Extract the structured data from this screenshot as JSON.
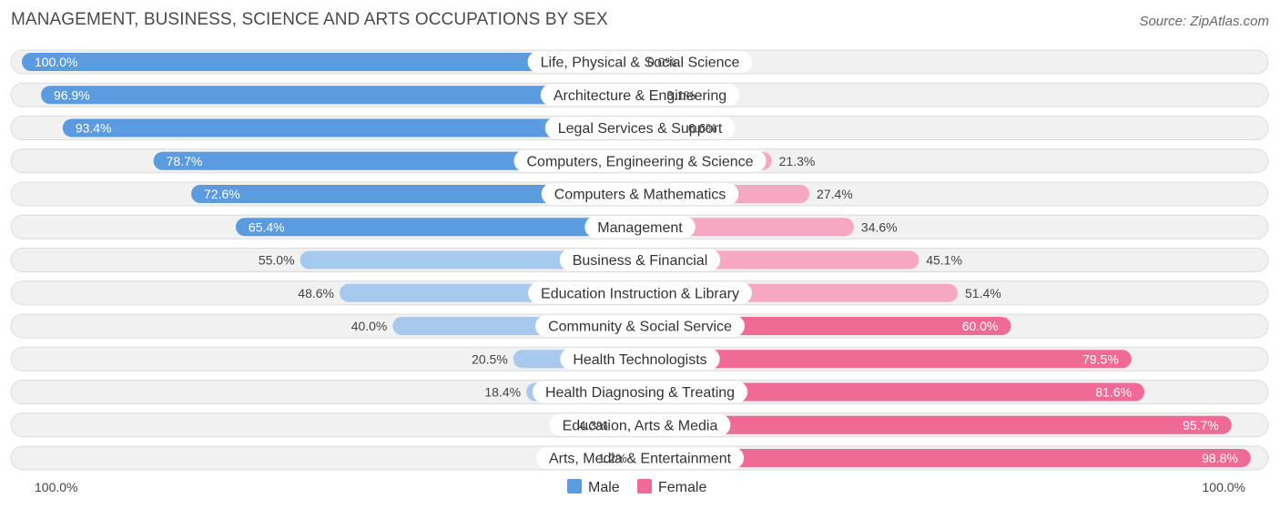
{
  "chart_data": {
    "type": "bar",
    "orientation": "horizontal-diverging",
    "title": "MANAGEMENT, BUSINESS, SCIENCE AND ARTS OCCUPATIONS BY SEX",
    "source": "Source: ZipAtlas.com",
    "categories": [
      "Life, Physical & Social Science",
      "Architecture & Engineering",
      "Legal Services & Support",
      "Computers, Engineering & Science",
      "Computers & Mathematics",
      "Management",
      "Business & Financial",
      "Education Instruction & Library",
      "Community & Social Service",
      "Health Technologists",
      "Health Diagnosing & Treating",
      "Education, Arts & Media",
      "Arts, Media & Entertainment"
    ],
    "series": [
      {
        "name": "Male",
        "values": [
          100.0,
          96.9,
          93.4,
          78.7,
          72.6,
          65.4,
          55.0,
          48.6,
          40.0,
          20.5,
          18.4,
          4.3,
          1.2
        ],
        "labels": [
          "100.0%",
          "96.9%",
          "93.4%",
          "78.7%",
          "72.6%",
          "65.4%",
          "55.0%",
          "48.6%",
          "40.0%",
          "20.5%",
          "18.4%",
          "4.3%",
          "1.2%"
        ]
      },
      {
        "name": "Female",
        "values": [
          0.0,
          3.1,
          6.6,
          21.3,
          27.4,
          34.6,
          45.1,
          51.4,
          60.0,
          79.5,
          81.6,
          95.7,
          98.8
        ],
        "labels": [
          "0.0%",
          "3.1%",
          "6.6%",
          "21.3%",
          "27.4%",
          "34.6%",
          "45.1%",
          "51.4%",
          "60.0%",
          "79.5%",
          "81.6%",
          "95.7%",
          "98.8%"
        ]
      }
    ],
    "xlim": [
      0,
      100
    ],
    "axis_left_label": "100.0%",
    "axis_right_label": "100.0%",
    "legend": [
      "Male",
      "Female"
    ],
    "legend_position": "bottom-center",
    "colors": {
      "male_strong": "#5b9bdf",
      "male_light": "#a8c9ee",
      "female_light": "#f6a8c3",
      "female_strong": "#f06a96"
    }
  }
}
